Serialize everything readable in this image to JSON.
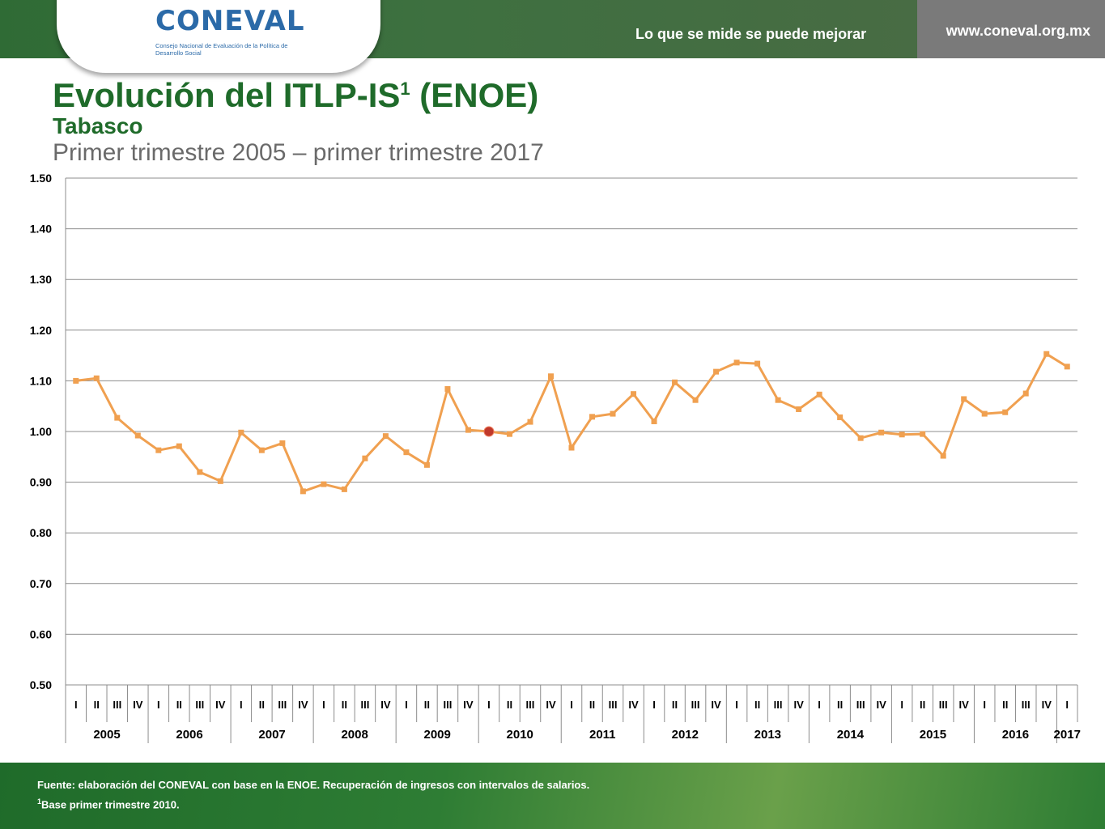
{
  "header": {
    "logo_text": "CONEVAL",
    "logo_subtitle": "Consejo Nacional de Evaluación de la Política de Desarrollo Social",
    "slogan": "Lo que se mide se puede mejorar",
    "url": "www.coneval.org.mx"
  },
  "title": {
    "main": "Evolución del ITLP-IS",
    "main_sup": "1",
    "main_suffix": " (ENOE)",
    "subtitle": "Tabasco",
    "period": "Primer trimestre 2005 – primer trimestre 2017"
  },
  "chart_data": {
    "type": "line",
    "ylim": [
      0.5,
      1.5
    ],
    "yticks": [
      "0.50",
      "0.60",
      "0.70",
      "0.80",
      "0.90",
      "1.00",
      "1.10",
      "1.20",
      "1.30",
      "1.40",
      "1.50"
    ],
    "grid": true,
    "years": [
      "2005",
      "2006",
      "2007",
      "2008",
      "2009",
      "2010",
      "2011",
      "2012",
      "2013",
      "2014",
      "2015",
      "2016",
      "2017"
    ],
    "quarters": [
      "I",
      "II",
      "III",
      "IV",
      "I",
      "II",
      "III",
      "IV",
      "I",
      "II",
      "III",
      "IV",
      "I",
      "II",
      "III",
      "IV",
      "I",
      "II",
      "III",
      "IV",
      "I",
      "II",
      "III",
      "IV",
      "I",
      "II",
      "III",
      "IV",
      "I",
      "II",
      "III",
      "IV",
      "I",
      "II",
      "III",
      "IV",
      "I",
      "II",
      "III",
      "IV",
      "I",
      "II",
      "III",
      "IV",
      "I",
      "II",
      "III",
      "IV",
      "I"
    ],
    "values": [
      1.1,
      1.105,
      1.027,
      0.992,
      0.963,
      0.971,
      0.92,
      0.902,
      0.998,
      0.963,
      0.977,
      0.882,
      0.896,
      0.886,
      0.947,
      0.991,
      0.959,
      0.934,
      1.084,
      1.003,
      1.0,
      0.995,
      1.019,
      1.109,
      0.968,
      1.029,
      1.035,
      1.074,
      1.02,
      1.097,
      1.062,
      1.118,
      1.136,
      1.134,
      1.062,
      1.044,
      1.073,
      1.028,
      0.987,
      0.998,
      0.994,
      0.995,
      0.952,
      1.064,
      1.035,
      1.038,
      1.075,
      1.153,
      1.128
    ],
    "highlight_index": 20,
    "line_color": "#f0a050",
    "highlight_color": "#c0392b"
  },
  "footer": {
    "source": "Fuente: elaboración del CONEVAL con base en la ENOE. Recuperación de ingresos con intervalos de salarios.",
    "note_sup": "1",
    "note": "Base primer trimestre 2010."
  }
}
